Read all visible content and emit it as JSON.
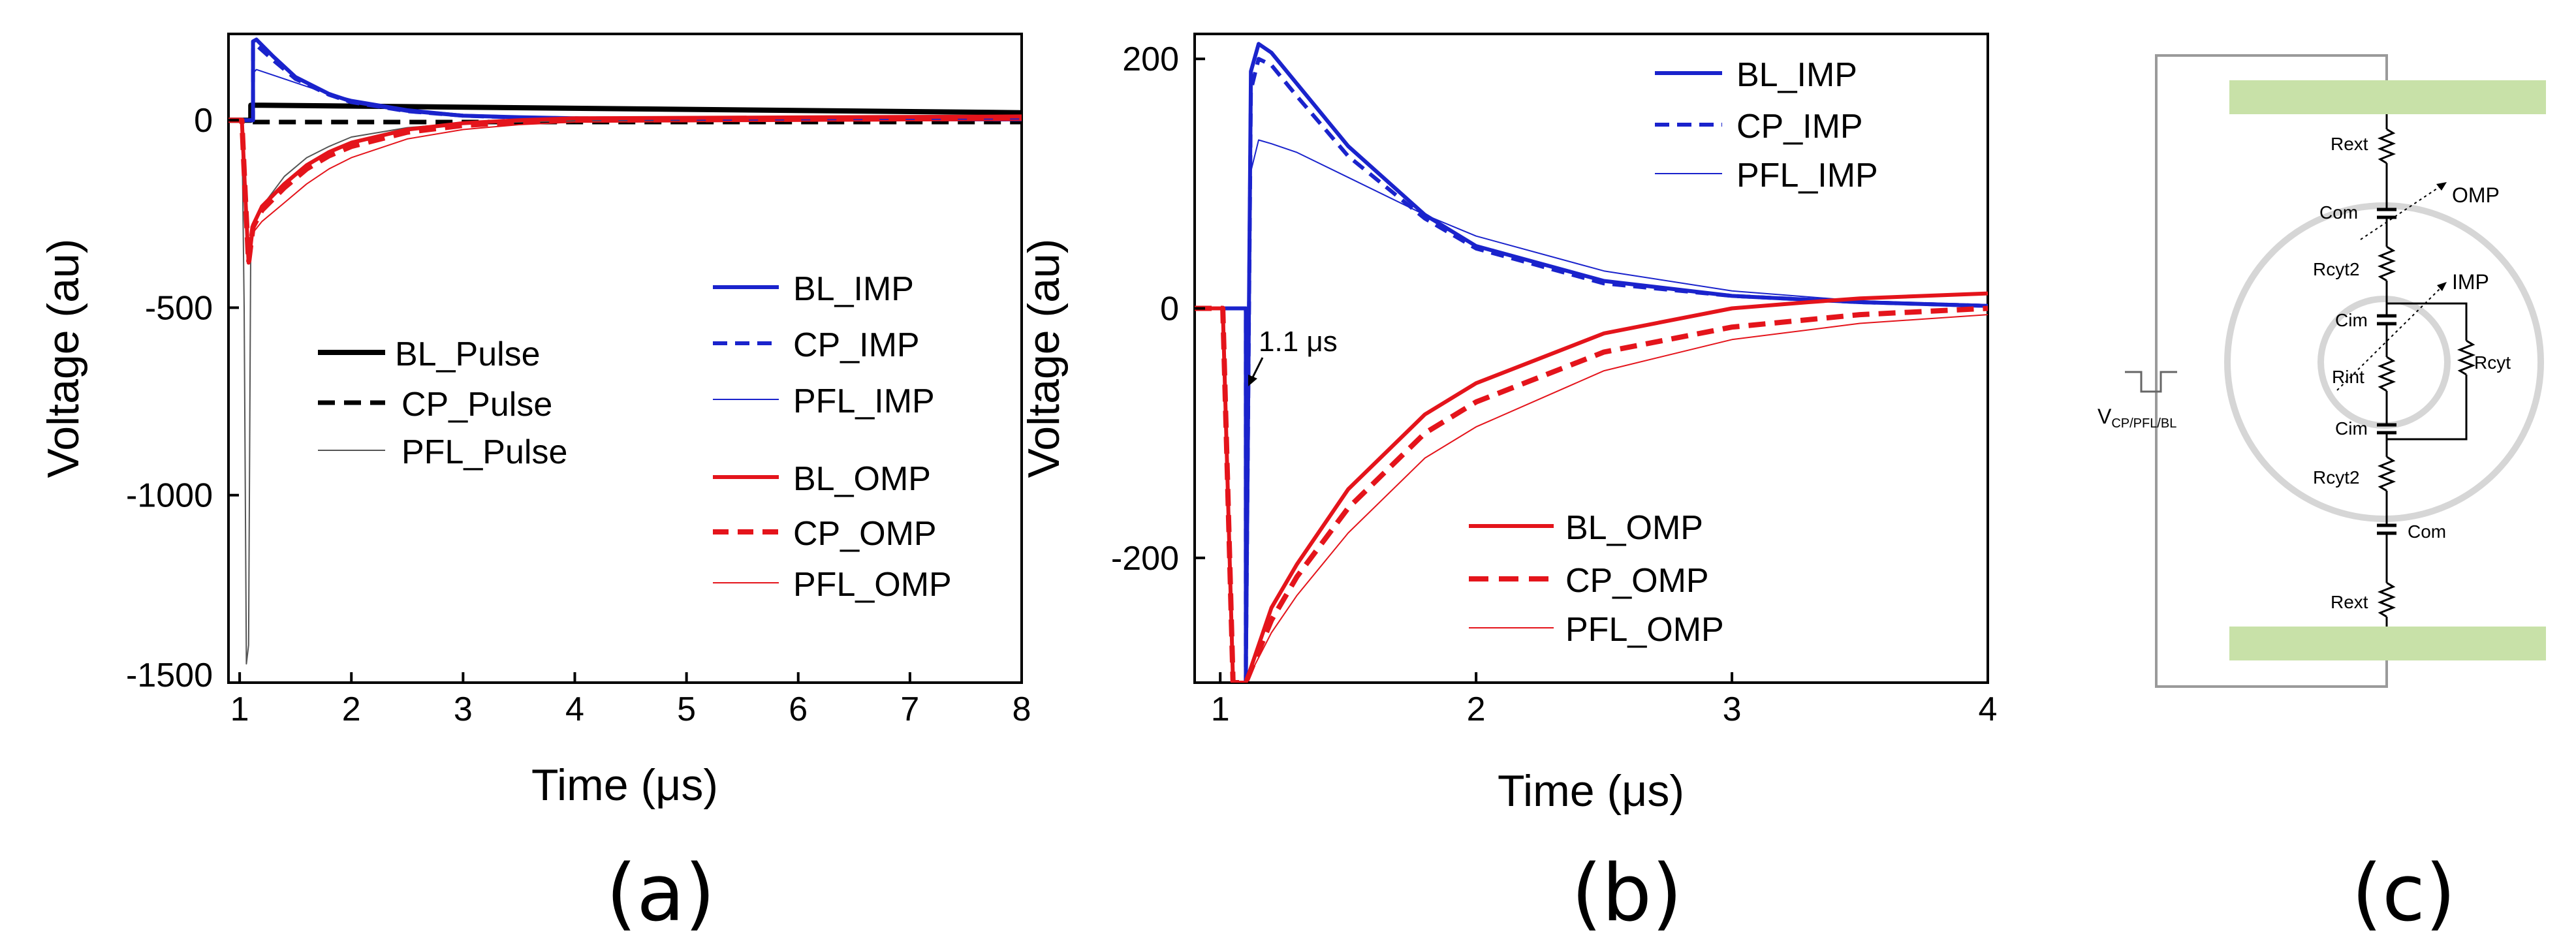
{
  "colors": {
    "blue": "#1a23cc",
    "red": "#e4141b",
    "black": "#000000",
    "gray": "#555555",
    "green": "#c8e1a8",
    "ring": "#d6d6d6",
    "wire": "#9a9a9a"
  },
  "chart_data": [
    {
      "panel": "(a)",
      "type": "line",
      "xlabel": "Time (μs)",
      "ylabel": "Voltage (au)",
      "xlim": [
        0.9,
        8
      ],
      "ylim": [
        -1500,
        230
      ],
      "xticks": [
        "1",
        "2",
        "3",
        "4",
        "5",
        "6",
        "7",
        "8"
      ],
      "yticks": [
        "0",
        "-500",
        "-1000",
        "-1500"
      ],
      "xtick_values": [
        1,
        2,
        3,
        4,
        5,
        6,
        7,
        8
      ],
      "ytick_values": [
        0,
        -500,
        -1000,
        -1500
      ],
      "series": [
        {
          "name": "BL_Pulse",
          "color": "black",
          "style": "solid",
          "width": 8,
          "x": [
            0.9,
            1.1,
            1.1,
            1.2,
            8
          ],
          "y": [
            0,
            0,
            40,
            40,
            20
          ]
        },
        {
          "name": "CP_Pulse",
          "color": "black",
          "style": "dashed",
          "width": 7,
          "x": [
            0.9,
            1.1,
            1.1,
            8
          ],
          "y": [
            0,
            0,
            -5,
            -5
          ]
        },
        {
          "name": "PFL_Pulse",
          "color": "gray",
          "style": "solid",
          "width": 2,
          "x": [
            0.9,
            1.02,
            1.04,
            1.06,
            1.08,
            1.1,
            1.2,
            1.4,
            1.6,
            1.8,
            2.0,
            2.5,
            3,
            4,
            5,
            8
          ],
          "y": [
            0,
            0,
            -500,
            -1450,
            -1400,
            -300,
            -230,
            -150,
            -100,
            -70,
            -45,
            -20,
            -8,
            -2,
            0,
            0
          ]
        },
        {
          "name": "BL_IMP",
          "color": "blue",
          "style": "solid",
          "width": 6,
          "x": [
            0.9,
            1.12,
            1.12,
            1.15,
            1.3,
            1.5,
            1.8,
            2.0,
            2.5,
            3.0,
            3.5,
            4,
            8
          ],
          "y": [
            0,
            0,
            210,
            215,
            170,
            115,
            70,
            50,
            25,
            12,
            8,
            5,
            2
          ]
        },
        {
          "name": "CP_IMP",
          "color": "blue",
          "style": "dashed",
          "width": 6,
          "x": [
            0.9,
            1.12,
            1.12,
            1.15,
            1.3,
            1.5,
            1.8,
            2.0,
            2.5,
            3.0,
            3.5,
            4,
            8
          ],
          "y": [
            0,
            0,
            195,
            200,
            160,
            110,
            68,
            48,
            24,
            12,
            7,
            5,
            2
          ]
        },
        {
          "name": "PFL_IMP",
          "color": "blue",
          "style": "solid",
          "width": 2,
          "x": [
            0.9,
            1.12,
            1.12,
            1.15,
            1.3,
            1.5,
            1.8,
            2.0,
            2.5,
            3.0,
            3.5,
            4,
            8
          ],
          "y": [
            0,
            0,
            125,
            135,
            120,
            100,
            70,
            55,
            30,
            15,
            10,
            6,
            3
          ]
        },
        {
          "name": "BL_OMP",
          "color": "red",
          "style": "solid",
          "width": 6,
          "x": [
            0.9,
            1.02,
            1.05,
            1.08,
            1.12,
            1.2,
            1.4,
            1.6,
            1.8,
            2.0,
            2.5,
            3.0,
            3.5,
            4,
            8
          ],
          "y": [
            0,
            0,
            -200,
            -380,
            -280,
            -230,
            -170,
            -120,
            -85,
            -60,
            -25,
            -8,
            0,
            5,
            10
          ]
        },
        {
          "name": "CP_OMP",
          "color": "red",
          "style": "dashed",
          "width": 8,
          "x": [
            0.9,
            1.02,
            1.05,
            1.08,
            1.12,
            1.2,
            1.4,
            1.6,
            1.8,
            2.0,
            2.5,
            3.0,
            3.5,
            4,
            8
          ],
          "y": [
            0,
            0,
            -200,
            -380,
            -285,
            -240,
            -180,
            -130,
            -95,
            -70,
            -32,
            -14,
            -5,
            0,
            5
          ]
        },
        {
          "name": "PFL_OMP",
          "color": "red",
          "style": "solid",
          "width": 2,
          "x": [
            0.9,
            1.02,
            1.05,
            1.08,
            1.12,
            1.2,
            1.4,
            1.6,
            1.8,
            2.0,
            2.5,
            3.0,
            3.5,
            4,
            8
          ],
          "y": [
            0,
            0,
            -200,
            -380,
            -300,
            -270,
            -220,
            -170,
            -130,
            -100,
            -50,
            -25,
            -12,
            -5,
            0
          ]
        }
      ],
      "legend": [
        {
          "labels": [
            "BL_Pulse",
            "CP_Pulse",
            "PFL_Pulse"
          ],
          "placement": "center-left"
        },
        {
          "labels": [
            "BL_IMP",
            "CP_IMP",
            "PFL_IMP",
            "BL_OMP",
            "CP_OMP",
            "PFL_OMP"
          ],
          "placement": "center-right"
        }
      ]
    },
    {
      "panel": "(b)",
      "type": "line",
      "xlabel": "Time (μs)",
      "ylabel": "Voltage (au)",
      "xlim": [
        0.9,
        4
      ],
      "ylim": [
        -300,
        220
      ],
      "xticks": [
        "1",
        "2",
        "3",
        "4"
      ],
      "yticks": [
        "200",
        "0",
        "-200"
      ],
      "xtick_values": [
        1,
        2,
        3,
        4
      ],
      "ytick_values": [
        200,
        0,
        -200
      ],
      "annotation": "1.1 μs",
      "series": [
        {
          "name": "BL_IMP",
          "color": "blue",
          "style": "solid",
          "width": 6,
          "x": [
            0.9,
            1.0,
            1.1,
            1.1,
            1.12,
            1.15,
            1.2,
            1.3,
            1.5,
            1.8,
            2.0,
            2.5,
            3.0,
            3.5,
            4.0
          ],
          "y": [
            0,
            0,
            0,
            -300,
            190,
            212,
            205,
            180,
            130,
            75,
            50,
            22,
            10,
            5,
            2
          ]
        },
        {
          "name": "CP_IMP",
          "color": "blue",
          "style": "dashed",
          "width": 6,
          "x": [
            0.9,
            1.0,
            1.1,
            1.1,
            1.12,
            1.15,
            1.2,
            1.3,
            1.5,
            1.8,
            2.0,
            2.5,
            3.0,
            3.5,
            4.0
          ],
          "y": [
            0,
            0,
            0,
            -300,
            175,
            200,
            195,
            170,
            122,
            72,
            48,
            20,
            10,
            5,
            2
          ]
        },
        {
          "name": "PFL_IMP",
          "color": "blue",
          "style": "solid",
          "width": 2,
          "x": [
            0.9,
            1.0,
            1.1,
            1.1,
            1.12,
            1.15,
            1.2,
            1.3,
            1.5,
            1.8,
            2.0,
            2.5,
            3.0,
            3.5,
            4.0
          ],
          "y": [
            0,
            0,
            0,
            -300,
            110,
            135,
            132,
            125,
            105,
            75,
            58,
            30,
            14,
            6,
            3
          ]
        },
        {
          "name": "BL_OMP",
          "color": "red",
          "style": "solid",
          "width": 6,
          "x": [
            0.9,
            1.0,
            1.01,
            1.03,
            1.05,
            1.1,
            1.2,
            1.3,
            1.5,
            1.8,
            2.0,
            2.5,
            3.0,
            3.3,
            3.5,
            4.0
          ],
          "y": [
            0,
            0,
            0,
            -150,
            -300,
            -300,
            -240,
            -205,
            -145,
            -85,
            -60,
            -20,
            0,
            5,
            8,
            12
          ]
        },
        {
          "name": "CP_OMP",
          "color": "red",
          "style": "dashed",
          "width": 8,
          "x": [
            0.9,
            1.0,
            1.01,
            1.03,
            1.05,
            1.1,
            1.2,
            1.3,
            1.5,
            1.8,
            2.0,
            2.5,
            3.0,
            3.5,
            4.0
          ],
          "y": [
            0,
            0,
            0,
            -150,
            -300,
            -300,
            -250,
            -215,
            -160,
            -100,
            -75,
            -35,
            -15,
            -5,
            0
          ]
        },
        {
          "name": "PFL_OMP",
          "color": "red",
          "style": "solid",
          "width": 2,
          "x": [
            0.9,
            1.0,
            1.01,
            1.03,
            1.05,
            1.1,
            1.2,
            1.3,
            1.5,
            1.8,
            2.0,
            2.5,
            3.0,
            3.5,
            4.0
          ],
          "y": [
            0,
            0,
            0,
            -150,
            -300,
            -300,
            -260,
            -230,
            -180,
            -120,
            -95,
            -50,
            -25,
            -12,
            -5
          ]
        }
      ],
      "legend": [
        {
          "labels": [
            "BL_IMP",
            "CP_IMP",
            "PFL_IMP"
          ],
          "placement": "top-right"
        },
        {
          "labels": [
            "BL_OMP",
            "CP_OMP",
            "PFL_OMP"
          ],
          "placement": "bottom-center"
        }
      ]
    }
  ],
  "circuit": {
    "panel": "(c)",
    "labels": {
      "rext_top": "Rext",
      "omp": "OMP",
      "com_top": "Com",
      "rcyt2_top": "Rcyt2",
      "imp": "IMP",
      "cim_top": "Cim",
      "rcyt": "Rcyt",
      "rint": "Rint",
      "cim_bottom": "Cim",
      "rcyt2_bottom": "Rcyt2",
      "com_bottom": "Com",
      "rext_bottom": "Rext",
      "source_main": "V",
      "source_sub": "CP/PFL/BL"
    }
  }
}
